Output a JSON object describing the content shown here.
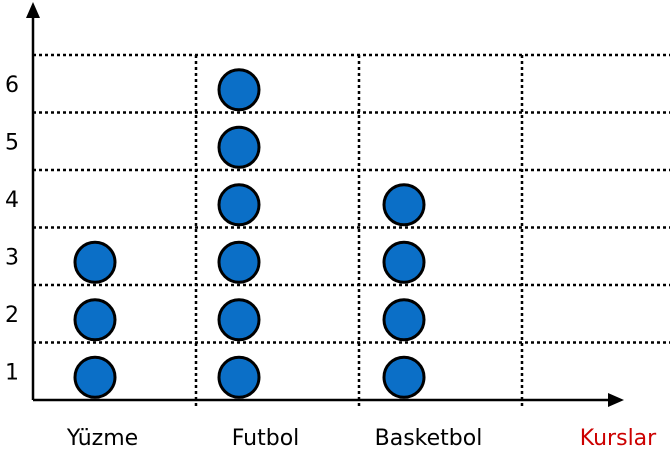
{
  "chart_data": {
    "type": "scatter",
    "subtype": "pictograph-dot-plot",
    "title": "",
    "xlabel": "Kurslar",
    "ylabel": "",
    "categories": [
      "Yüzme",
      "Futbol",
      "Basketbol"
    ],
    "values": [
      3,
      6,
      4
    ],
    "y_ticks": [
      "1",
      "2",
      "3",
      "4",
      "5",
      "6"
    ],
    "ylim": [
      0,
      6
    ],
    "grid": true,
    "grid_style": "dotted",
    "empty_columns": 1,
    "colors": {
      "marker_fill": "#0b6fc7",
      "marker_stroke": "#000000",
      "axis": "#000000",
      "xlabel": "#cc0000"
    }
  }
}
